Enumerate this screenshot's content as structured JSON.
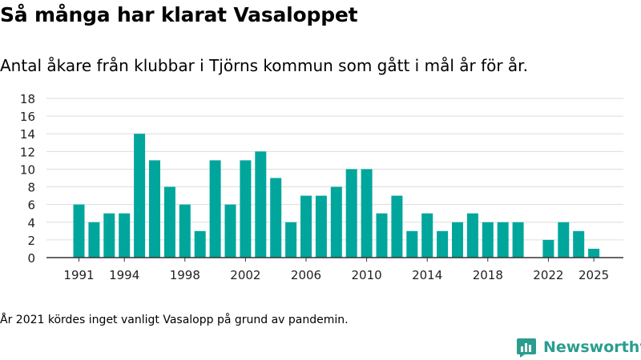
{
  "header": {
    "title": "Så många har klarat Vasaloppet",
    "subtitle": "Antal åkare från klubbar i Tjörns kommun som gått i mål år för år."
  },
  "footer": {
    "note": "År 2021 kördes inget vanligt Vasalopp på grund av pandemin.",
    "brand": "Newsworthy"
  },
  "colors": {
    "bar": "#00a69c",
    "grid": "#dddddd",
    "axis": "#333333",
    "brand": "#2a9d8f"
  },
  "chart_data": {
    "type": "bar",
    "title": "Så många har klarat Vasaloppet",
    "xlabel": "",
    "ylabel": "",
    "ylim": [
      0,
      18
    ],
    "yticks": [
      0,
      2,
      4,
      6,
      8,
      10,
      12,
      14,
      16,
      18
    ],
    "xticks": [
      1991,
      1994,
      1998,
      2002,
      2006,
      2010,
      2014,
      2018,
      2022,
      2025
    ],
    "grid": true,
    "categories": [
      1991,
      1992,
      1993,
      1994,
      1995,
      1996,
      1997,
      1998,
      1999,
      2000,
      2001,
      2002,
      2003,
      2004,
      2005,
      2006,
      2007,
      2008,
      2009,
      2010,
      2011,
      2012,
      2013,
      2014,
      2015,
      2016,
      2017,
      2018,
      2019,
      2020,
      2021,
      2022,
      2023,
      2024,
      2025
    ],
    "values": [
      6,
      4,
      5,
      5,
      14,
      11,
      8,
      6,
      3,
      11,
      6,
      11,
      12,
      9,
      4,
      7,
      7,
      8,
      10,
      10,
      5,
      7,
      3,
      5,
      3,
      4,
      5,
      4,
      4,
      4,
      0,
      2,
      4,
      3,
      1
    ]
  }
}
